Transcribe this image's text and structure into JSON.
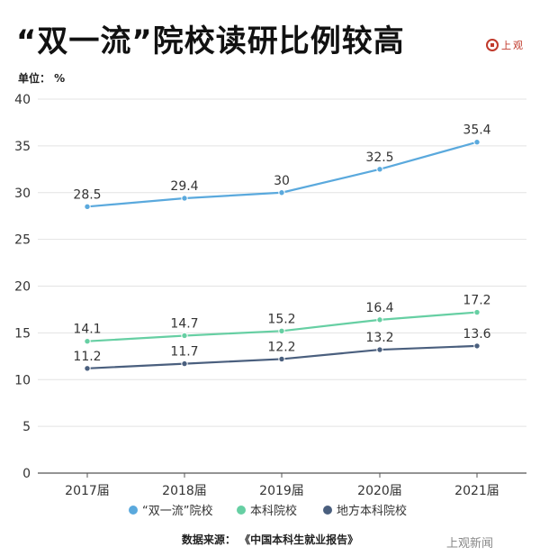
{
  "title": "“双一流”院校读研比例较高",
  "logo_text": "上观",
  "unit_label": "单位： %",
  "source": "数据来源：  《中国本科生就业报告》",
  "watermark": "上观新闻",
  "chart_data": {
    "type": "line",
    "x": [
      "2017届",
      "2018届",
      "2019届",
      "2020届",
      "2021届"
    ],
    "ylim": [
      0,
      40
    ],
    "yticks": [
      0,
      5,
      10,
      15,
      20,
      25,
      30,
      35,
      40
    ],
    "grid": true,
    "legend_position": "bottom",
    "series": [
      {
        "name": "“双一流”院校",
        "values": [
          28.5,
          29.4,
          30,
          32.5,
          35.4
        ],
        "labels": [
          "28.5",
          "29.4",
          "30",
          "32.5",
          "35.4"
        ],
        "color": "#5aa9dd"
      },
      {
        "name": "本科院校",
        "values": [
          14.1,
          14.7,
          15.2,
          16.4,
          17.2
        ],
        "labels": [
          "14.1",
          "14.7",
          "15.2",
          "16.4",
          "17.2"
        ],
        "color": "#66cfa3"
      },
      {
        "name": "地方本科院校",
        "values": [
          11.2,
          11.7,
          12.2,
          13.2,
          13.6
        ],
        "labels": [
          "11.2",
          "11.7",
          "12.2",
          "13.2",
          "13.6"
        ],
        "color": "#4a5f7e"
      }
    ]
  }
}
